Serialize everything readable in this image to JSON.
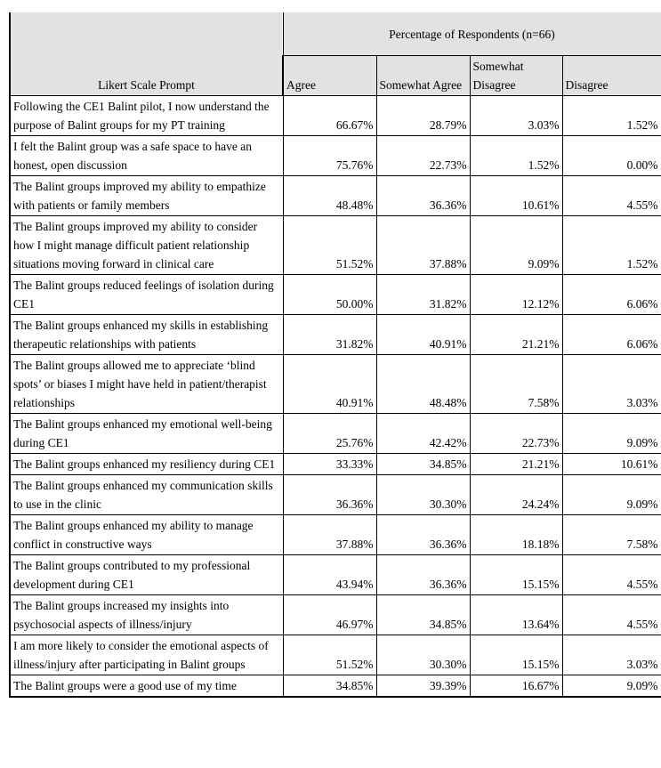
{
  "table": {
    "top_header": "Percentage of Respondents (n=66)",
    "prompt_header": "Likert Scale Prompt",
    "columns": [
      "Agree",
      "Somewhat Agree",
      "Somewhat Disagree",
      "Disagree"
    ],
    "header_bg_color": "#e2e2e2",
    "border_color": "#000000",
    "rows": [
      {
        "prompt": "Following the CE1 Balint pilot, I now understand the purpose of Balint groups for my PT training",
        "values": [
          "66.67%",
          "28.79%",
          "3.03%",
          "1.52%"
        ]
      },
      {
        "prompt": "I felt the Balint group was a safe space to have an honest, open discussion",
        "values": [
          "75.76%",
          "22.73%",
          "1.52%",
          "0.00%"
        ]
      },
      {
        "prompt": "The Balint groups improved my ability to empathize with patients or family members",
        "values": [
          "48.48%",
          "36.36%",
          "10.61%",
          "4.55%"
        ]
      },
      {
        "prompt": "The Balint groups improved my ability to consider how I might manage difficult patient relationship situations moving forward in clinical care",
        "values": [
          "51.52%",
          "37.88%",
          "9.09%",
          "1.52%"
        ]
      },
      {
        "prompt": "The Balint groups reduced feelings of isolation during CE1",
        "values": [
          "50.00%",
          "31.82%",
          "12.12%",
          "6.06%"
        ]
      },
      {
        "prompt": "The Balint groups enhanced my skills in establishing therapeutic relationships with patients",
        "values": [
          "31.82%",
          "40.91%",
          "21.21%",
          "6.06%"
        ]
      },
      {
        "prompt": "The Balint groups allowed me to appreciate ‘blind spots’ or biases I might have held in patient/therapist relationships",
        "values": [
          "40.91%",
          "48.48%",
          "7.58%",
          "3.03%"
        ]
      },
      {
        "prompt": "The Balint groups enhanced my emotional well-being during CE1",
        "values": [
          "25.76%",
          "42.42%",
          "22.73%",
          "9.09%"
        ]
      },
      {
        "prompt": "The Balint groups enhanced my resiliency during CE1",
        "values": [
          "33.33%",
          "34.85%",
          "21.21%",
          "10.61%"
        ]
      },
      {
        "prompt": "The Balint groups enhanced my communication skills to use in the clinic",
        "values": [
          "36.36%",
          "30.30%",
          "24.24%",
          "9.09%"
        ]
      },
      {
        "prompt": "The Balint groups enhanced my ability to manage conflict in constructive ways",
        "values": [
          "37.88%",
          "36.36%",
          "18.18%",
          "7.58%"
        ]
      },
      {
        "prompt": "The Balint groups contributed to my professional development during CE1",
        "values": [
          "43.94%",
          "36.36%",
          "15.15%",
          "4.55%"
        ]
      },
      {
        "prompt": "The Balint groups increased my insights into psychosocial aspects of illness/injury",
        "values": [
          "46.97%",
          "34.85%",
          "13.64%",
          "4.55%"
        ]
      },
      {
        "prompt": "I am more likely to consider the emotional aspects of illness/injury after participating in Balint groups",
        "values": [
          "51.52%",
          "30.30%",
          "15.15%",
          "3.03%"
        ]
      },
      {
        "prompt": "The Balint groups were a good use of my time",
        "values": [
          "34.85%",
          "39.39%",
          "16.67%",
          "9.09%"
        ]
      }
    ]
  },
  "chart_data": {
    "type": "table",
    "title": "Percentage of Respondents (n=66)",
    "row_header": "Likert Scale Prompt",
    "columns": [
      "Agree",
      "Somewhat Agree",
      "Somewhat Disagree",
      "Disagree"
    ],
    "unit": "percent",
    "rows": [
      {
        "prompt": "Following the CE1 Balint pilot, I now understand the purpose of Balint groups for my PT training",
        "values": [
          66.67,
          28.79,
          3.03,
          1.52
        ]
      },
      {
        "prompt": "I felt the Balint group was a safe space to have an honest, open discussion",
        "values": [
          75.76,
          22.73,
          1.52,
          0.0
        ]
      },
      {
        "prompt": "The Balint groups improved my ability to empathize with patients or family members",
        "values": [
          48.48,
          36.36,
          10.61,
          4.55
        ]
      },
      {
        "prompt": "The Balint groups improved my ability to consider how I might manage difficult patient relationship situations moving forward in clinical care",
        "values": [
          51.52,
          37.88,
          9.09,
          1.52
        ]
      },
      {
        "prompt": "The Balint groups reduced feelings of isolation during CE1",
        "values": [
          50.0,
          31.82,
          12.12,
          6.06
        ]
      },
      {
        "prompt": "The Balint groups enhanced my skills in establishing therapeutic relationships with patients",
        "values": [
          31.82,
          40.91,
          21.21,
          6.06
        ]
      },
      {
        "prompt": "The Balint groups allowed me to appreciate ‘blind spots’ or biases I might have held in patient/therapist relationships",
        "values": [
          40.91,
          48.48,
          7.58,
          3.03
        ]
      },
      {
        "prompt": "The Balint groups enhanced my emotional well-being during CE1",
        "values": [
          25.76,
          42.42,
          22.73,
          9.09
        ]
      },
      {
        "prompt": "The Balint groups enhanced my resiliency during CE1",
        "values": [
          33.33,
          34.85,
          21.21,
          10.61
        ]
      },
      {
        "prompt": "The Balint groups enhanced my communication skills to use in the clinic",
        "values": [
          36.36,
          30.3,
          24.24,
          9.09
        ]
      },
      {
        "prompt": "The Balint groups enhanced my ability to manage conflict in constructive ways",
        "values": [
          37.88,
          36.36,
          18.18,
          7.58
        ]
      },
      {
        "prompt": "The Balint groups contributed to my professional development during CE1",
        "values": [
          43.94,
          36.36,
          15.15,
          4.55
        ]
      },
      {
        "prompt": "The Balint groups increased my insights into psychosocial aspects of illness/injury",
        "values": [
          46.97,
          34.85,
          13.64,
          4.55
        ]
      },
      {
        "prompt": "I am more likely to consider the emotional aspects of illness/injury after participating in Balint groups",
        "values": [
          51.52,
          30.3,
          15.15,
          3.03
        ]
      },
      {
        "prompt": "The Balint groups were a good use of my time",
        "values": [
          34.85,
          39.39,
          16.67,
          9.09
        ]
      }
    ]
  }
}
